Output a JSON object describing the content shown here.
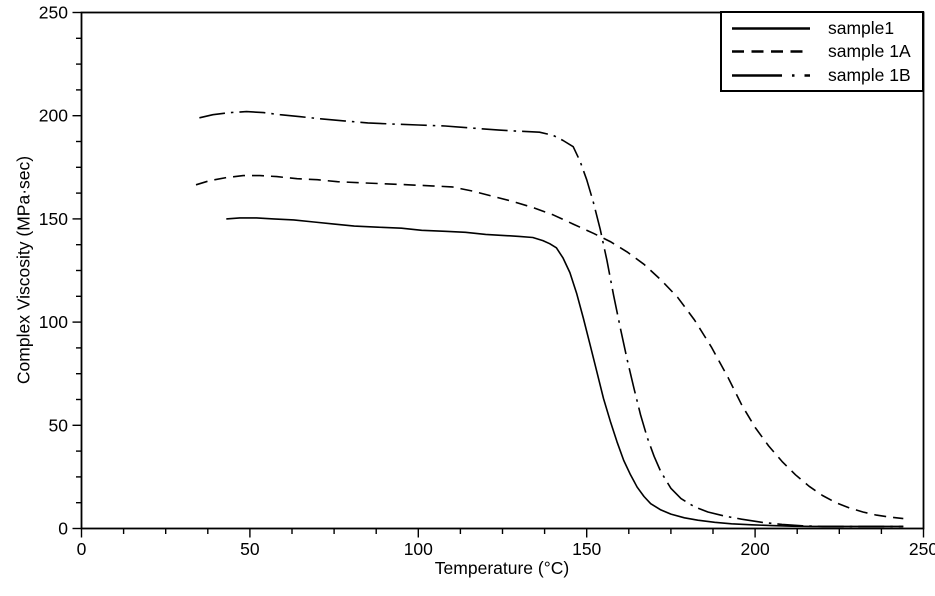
{
  "figure": {
    "background_color": "#ffffff",
    "line_color": "#000000"
  },
  "chart_data": {
    "type": "line",
    "title": "",
    "xlabel": "Temperature (°C)",
    "ylabel": "Complex Viscosity (MPa·sec)",
    "xlim": [
      0,
      250
    ],
    "ylim": [
      0,
      250
    ],
    "x_ticks": [
      0,
      50,
      100,
      150,
      200,
      250
    ],
    "y_ticks": [
      0,
      50,
      100,
      150,
      200,
      250
    ],
    "minor_tick_step": 12.5,
    "grid": false,
    "legend_position": "upper right",
    "series": [
      {
        "name": "sample1",
        "line_style": "solid",
        "color": "#000000",
        "points": [
          [
            43,
            150
          ],
          [
            47,
            150.5
          ],
          [
            52,
            150.5
          ],
          [
            57,
            150
          ],
          [
            63,
            149.5
          ],
          [
            69,
            148.5
          ],
          [
            75,
            147.5
          ],
          [
            81,
            146.5
          ],
          [
            88,
            146
          ],
          [
            95,
            145.5
          ],
          [
            101,
            144.5
          ],
          [
            108,
            144
          ],
          [
            114,
            143.5
          ],
          [
            120,
            142.5
          ],
          [
            125,
            142
          ],
          [
            130,
            141.5
          ],
          [
            134,
            141
          ],
          [
            137,
            139.5
          ],
          [
            139,
            138
          ],
          [
            141,
            136
          ],
          [
            143,
            131
          ],
          [
            145,
            124
          ],
          [
            147,
            114
          ],
          [
            149,
            102
          ],
          [
            151,
            89
          ],
          [
            153,
            76
          ],
          [
            155,
            63
          ],
          [
            157,
            52
          ],
          [
            159,
            42
          ],
          [
            161,
            33
          ],
          [
            163,
            26
          ],
          [
            165,
            20
          ],
          [
            167,
            15.5
          ],
          [
            169,
            12
          ],
          [
            172,
            9
          ],
          [
            175,
            7
          ],
          [
            179,
            5.2
          ],
          [
            183,
            4
          ],
          [
            188,
            3
          ],
          [
            193,
            2.3
          ],
          [
            199,
            1.8
          ],
          [
            205,
            1.4
          ],
          [
            211,
            1.1
          ],
          [
            217,
            1
          ],
          [
            224,
            1
          ],
          [
            231,
            1
          ],
          [
            238,
            1
          ],
          [
            244,
            1
          ]
        ]
      },
      {
        "name": "sample 1A",
        "line_style": "dashed",
        "color": "#000000",
        "points": [
          [
            34,
            166.5
          ],
          [
            38,
            168.5
          ],
          [
            43,
            170
          ],
          [
            48,
            171
          ],
          [
            53,
            171
          ],
          [
            58,
            170.5
          ],
          [
            64,
            169.5
          ],
          [
            70,
            169
          ],
          [
            76,
            168
          ],
          [
            83,
            167.5
          ],
          [
            90,
            167
          ],
          [
            97,
            166.5
          ],
          [
            104,
            166
          ],
          [
            110,
            165.5
          ],
          [
            116,
            163.5
          ],
          [
            122,
            161
          ],
          [
            128,
            158.5
          ],
          [
            134,
            155.5
          ],
          [
            140,
            152
          ],
          [
            146,
            147.5
          ],
          [
            152,
            143
          ],
          [
            157,
            139
          ],
          [
            162,
            134
          ],
          [
            167,
            128
          ],
          [
            172,
            120.5
          ],
          [
            177,
            112
          ],
          [
            182,
            101
          ],
          [
            187,
            88
          ],
          [
            192,
            73
          ],
          [
            196,
            60
          ],
          [
            200,
            49
          ],
          [
            204,
            40
          ],
          [
            208,
            32.5
          ],
          [
            212,
            26
          ],
          [
            216,
            20.5
          ],
          [
            220,
            16
          ],
          [
            224,
            12.5
          ],
          [
            228,
            10
          ],
          [
            232,
            8
          ],
          [
            236,
            6.5
          ],
          [
            240,
            5.5
          ],
          [
            244,
            4.8
          ]
        ]
      },
      {
        "name": "sample 1B",
        "line_style": "dashdot",
        "color": "#000000",
        "points": [
          [
            35,
            199
          ],
          [
            39,
            200.5
          ],
          [
            44,
            201.5
          ],
          [
            49,
            202
          ],
          [
            54,
            201.5
          ],
          [
            59,
            200.5
          ],
          [
            65,
            199.5
          ],
          [
            71,
            198.5
          ],
          [
            78,
            197.5
          ],
          [
            85,
            196.5
          ],
          [
            92,
            196
          ],
          [
            100,
            195.5
          ],
          [
            108,
            195
          ],
          [
            116,
            194
          ],
          [
            124,
            193
          ],
          [
            130,
            192.5
          ],
          [
            136,
            192
          ],
          [
            140,
            190.5
          ],
          [
            143,
            188
          ],
          [
            146,
            185
          ],
          [
            148,
            178
          ],
          [
            150,
            169
          ],
          [
            152,
            158
          ],
          [
            154,
            145
          ],
          [
            156,
            130
          ],
          [
            158,
            113
          ],
          [
            160,
            97
          ],
          [
            162,
            82
          ],
          [
            164,
            68
          ],
          [
            166,
            55
          ],
          [
            168,
            44
          ],
          [
            170,
            35
          ],
          [
            172,
            27.5
          ],
          [
            175,
            19.5
          ],
          [
            178,
            14.5
          ],
          [
            182,
            10.5
          ],
          [
            186,
            8
          ],
          [
            191,
            6
          ],
          [
            196,
            4.5
          ],
          [
            202,
            3
          ],
          [
            208,
            2
          ],
          [
            214,
            1.3
          ],
          [
            220,
            1
          ],
          [
            227,
            1
          ],
          [
            234,
            1
          ],
          [
            241,
            1
          ],
          [
            244,
            1
          ]
        ]
      }
    ]
  }
}
